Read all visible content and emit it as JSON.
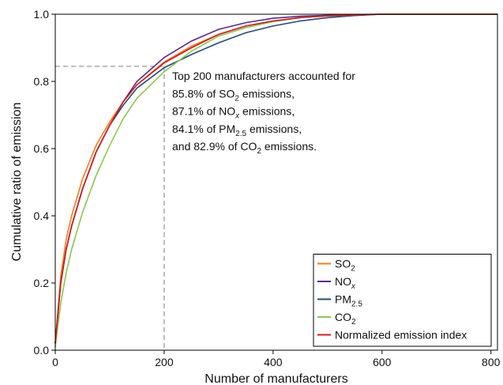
{
  "chart_data": {
    "type": "line",
    "xlabel": "Number of manufacturers",
    "ylabel": "Cumulative ratio of emission",
    "x": [
      0,
      10,
      20,
      30,
      50,
      75,
      100,
      125,
      150,
      200,
      250,
      300,
      350,
      400,
      450,
      500,
      550,
      600,
      700,
      812
    ],
    "series": [
      {
        "name": [
          "SO",
          "2"
        ],
        "color": "#f07f1e",
        "values": [
          0.02,
          0.22,
          0.33,
          0.4,
          0.51,
          0.61,
          0.68,
          0.74,
          0.79,
          0.858,
          0.905,
          0.94,
          0.965,
          0.98,
          0.99,
          0.995,
          0.998,
          1,
          1,
          1
        ]
      },
      {
        "name": [
          "NO",
          "x"
        ],
        "color": "#5b2a8c",
        "values": [
          0.02,
          0.2,
          0.3,
          0.37,
          0.48,
          0.59,
          0.67,
          0.74,
          0.8,
          0.871,
          0.92,
          0.955,
          0.975,
          0.988,
          0.994,
          0.997,
          0.999,
          1,
          1,
          1
        ]
      },
      {
        "name": [
          "PM",
          "2.5"
        ],
        "color": "#1f4e79",
        "values": [
          0.02,
          0.2,
          0.3,
          0.37,
          0.48,
          0.59,
          0.67,
          0.73,
          0.78,
          0.841,
          0.88,
          0.915,
          0.945,
          0.965,
          0.98,
          0.99,
          0.996,
          1,
          1,
          1
        ]
      },
      {
        "name": [
          "CO",
          "2"
        ],
        "color": "#8cc652",
        "values": [
          0.01,
          0.14,
          0.23,
          0.3,
          0.41,
          0.52,
          0.61,
          0.69,
          0.75,
          0.829,
          0.89,
          0.935,
          0.96,
          0.978,
          0.99,
          0.995,
          0.998,
          1,
          1,
          1
        ]
      },
      {
        "name": [
          "Normalized emission index"
        ],
        "color": "#d7191c",
        "values": [
          0.02,
          0.2,
          0.3,
          0.37,
          0.48,
          0.59,
          0.67,
          0.74,
          0.79,
          0.855,
          0.9,
          0.94,
          0.965,
          0.98,
          0.99,
          0.995,
          0.998,
          1,
          1,
          1
        ]
      }
    ],
    "xlim": [
      0,
      812
    ],
    "ylim": [
      0,
      1
    ],
    "xticks": [
      0,
      200,
      400,
      600,
      800
    ],
    "yticks": [
      {
        "value": 0,
        "label": "0.0"
      },
      0.2,
      0.4,
      0.6,
      0.8,
      {
        "value": 1,
        "label": "1.0"
      }
    ],
    "guide": {
      "x": 200,
      "y": 0.845
    },
    "annotation": [
      [
        "Top 200 manufacturers accounted for"
      ],
      [
        "85.8% of SO",
        "2",
        " emissions,"
      ],
      [
        "87.1% of NO",
        "x",
        " emissions,"
      ],
      [
        "84.1% of PM",
        "2.5",
        " emissions,"
      ],
      [
        "and 82.9% of CO",
        "2",
        " emissions."
      ]
    ],
    "legend": "lower right"
  }
}
